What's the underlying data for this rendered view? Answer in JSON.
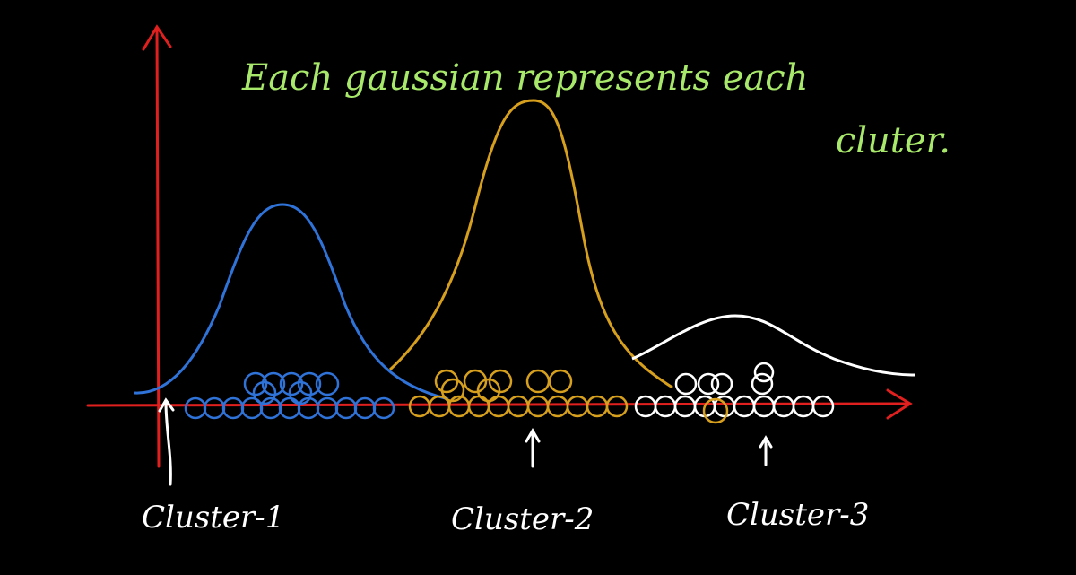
{
  "annotation": {
    "line1": "Each gaussian represents each",
    "line2": "cluter."
  },
  "labels": [
    "Cluster-1",
    "Cluster-2",
    "Cluster-3"
  ]
}
